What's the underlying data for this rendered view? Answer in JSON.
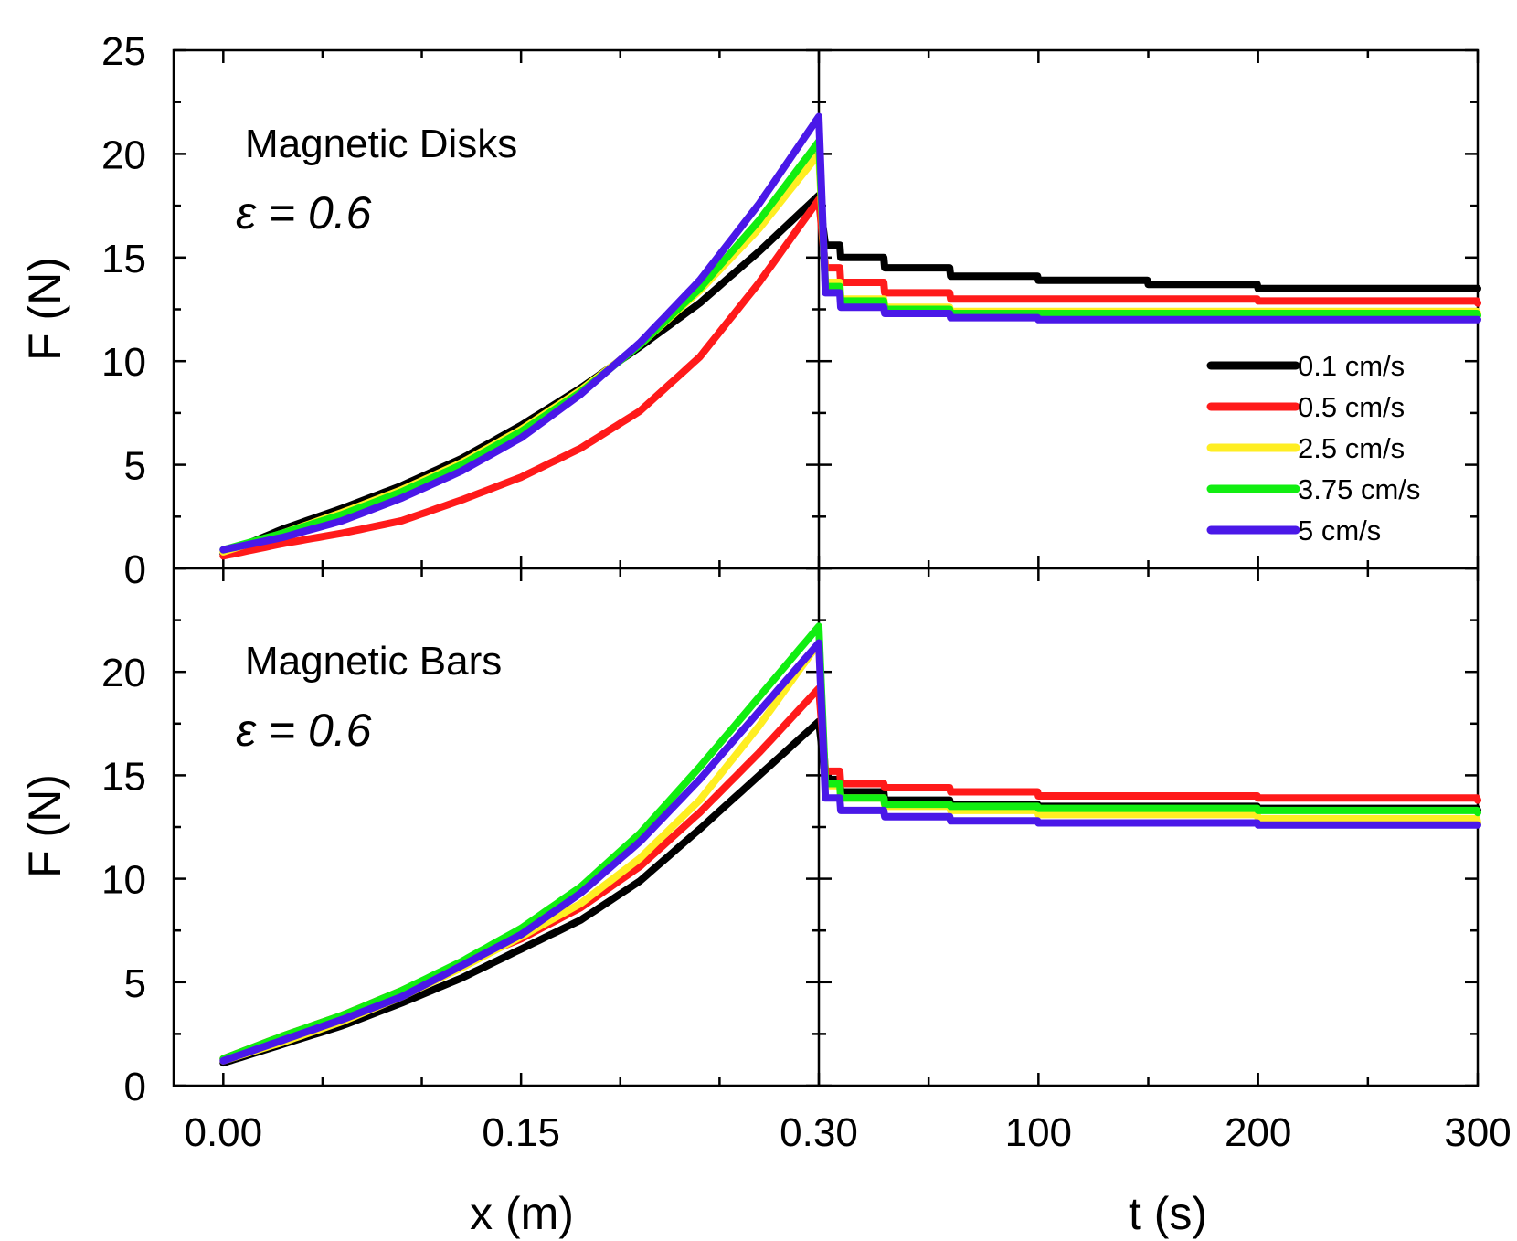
{
  "colors": {
    "0.1 cm/s": "#000000",
    "0.5 cm/s": "#ff1a1a",
    "2.5 cm/s": "#ffee22",
    "3.75 cm/s": "#11ee11",
    "5 cm/s": "#4a18e8"
  },
  "chart_data": {
    "type": "line",
    "title": "",
    "ylabel": "F (N)",
    "ylim": [
      0,
      25
    ],
    "yticks": [
      "0",
      "5",
      "10",
      "15",
      "20",
      "25"
    ],
    "yticks_bottom": [
      "0",
      "5",
      "10",
      "15",
      "20"
    ],
    "xlabel_left": "x (m)",
    "xlabel_right": "t (s)",
    "xlim_left": [
      -0.025,
      0.3
    ],
    "xlim_right": [
      0,
      300
    ],
    "xticks_left": [
      "0.00",
      "0.15",
      "0.30"
    ],
    "xticks_right": [
      "100",
      "200",
      "300"
    ],
    "legend": {
      "position": "right-middle of top-right panel",
      "entries": [
        "0.1 cm/s",
        "0.5 cm/s",
        "2.5 cm/s",
        "3.75 cm/s",
        "5 cm/s"
      ]
    },
    "panels": [
      {
        "name": "top",
        "annotation": "Magnetic Disks",
        "epsilon_label": "ε = 0.6",
        "loading_x": [
          0.0,
          0.03,
          0.06,
          0.09,
          0.12,
          0.15,
          0.18,
          0.21,
          0.24,
          0.27,
          0.3
        ],
        "series": [
          {
            "name": "0.1 cm/s",
            "loading": [
              0.7,
              1.9,
              2.9,
              4.0,
              5.3,
              6.9,
              8.7,
              10.7,
              12.8,
              15.3,
              18.0
            ],
            "relaxation": [
              [
                0,
                18.0
              ],
              [
                3,
                15.6
              ],
              [
                10,
                15.0
              ],
              [
                30,
                14.5
              ],
              [
                60,
                14.1
              ],
              [
                100,
                13.9
              ],
              [
                150,
                13.7
              ],
              [
                200,
                13.5
              ],
              [
                300,
                13.5
              ]
            ]
          },
          {
            "name": "0.5 cm/s",
            "loading": [
              0.6,
              1.2,
              1.7,
              2.3,
              3.3,
              4.4,
              5.8,
              7.6,
              10.2,
              13.8,
              17.8
            ],
            "relaxation": [
              [
                0,
                17.8
              ],
              [
                3,
                14.5
              ],
              [
                10,
                13.8
              ],
              [
                30,
                13.3
              ],
              [
                60,
                13.0
              ],
              [
                100,
                13.0
              ],
              [
                200,
                12.9
              ],
              [
                300,
                12.8
              ]
            ]
          },
          {
            "name": "2.5 cm/s",
            "loading": [
              0.8,
              1.7,
              2.7,
              3.8,
              5.1,
              6.7,
              8.6,
              10.8,
              13.4,
              16.4,
              20.0
            ],
            "relaxation": [
              [
                0,
                20.0
              ],
              [
                3,
                13.8
              ],
              [
                10,
                13.0
              ],
              [
                30,
                12.6
              ],
              [
                60,
                12.4
              ],
              [
                100,
                12.4
              ],
              [
                300,
                12.3
              ]
            ]
          },
          {
            "name": "3.75 cm/s",
            "loading": [
              0.9,
              1.7,
              2.6,
              3.7,
              5.0,
              6.6,
              8.5,
              10.8,
              13.5,
              16.8,
              20.6
            ],
            "relaxation": [
              [
                0,
                20.6
              ],
              [
                3,
                13.6
              ],
              [
                10,
                12.9
              ],
              [
                30,
                12.5
              ],
              [
                60,
                12.3
              ],
              [
                100,
                12.3
              ],
              [
                300,
                12.2
              ]
            ]
          },
          {
            "name": "5 cm/s",
            "loading": [
              0.9,
              1.5,
              2.3,
              3.4,
              4.7,
              6.3,
              8.4,
              10.9,
              13.9,
              17.6,
              21.8
            ],
            "relaxation": [
              [
                0,
                21.8
              ],
              [
                3,
                13.3
              ],
              [
                10,
                12.6
              ],
              [
                30,
                12.3
              ],
              [
                60,
                12.1
              ],
              [
                100,
                12.0
              ],
              [
                300,
                12.0
              ]
            ]
          }
        ]
      },
      {
        "name": "bottom",
        "annotation": "Magnetic Bars",
        "epsilon_label": "ε = 0.6",
        "loading_x": [
          0.0,
          0.03,
          0.06,
          0.09,
          0.12,
          0.15,
          0.18,
          0.21,
          0.24,
          0.27,
          0.3
        ],
        "series": [
          {
            "name": "0.1 cm/s",
            "loading": [
              1.1,
              2.0,
              2.9,
              4.0,
              5.2,
              6.6,
              8.0,
              9.9,
              12.4,
              15.0,
              17.6
            ],
            "relaxation": [
              [
                0,
                17.6
              ],
              [
                3,
                14.8
              ],
              [
                10,
                14.2
              ],
              [
                30,
                13.8
              ],
              [
                60,
                13.6
              ],
              [
                100,
                13.5
              ],
              [
                200,
                13.4
              ],
              [
                300,
                13.3
              ]
            ]
          },
          {
            "name": "0.5 cm/s",
            "loading": [
              1.3,
              2.4,
              3.4,
              4.6,
              5.9,
              7.1,
              8.6,
              10.6,
              13.2,
              16.1,
              19.2
            ],
            "relaxation": [
              [
                0,
                19.2
              ],
              [
                3,
                15.2
              ],
              [
                10,
                14.6
              ],
              [
                30,
                14.4
              ],
              [
                60,
                14.2
              ],
              [
                100,
                14.0
              ],
              [
                200,
                13.9
              ],
              [
                300,
                13.8
              ]
            ]
          },
          {
            "name": "2.5 cm/s",
            "loading": [
              1.2,
              2.1,
              3.1,
              4.3,
              5.7,
              7.2,
              8.8,
              11.0,
              13.8,
              17.4,
              21.4
            ],
            "relaxation": [
              [
                0,
                21.4
              ],
              [
                3,
                14.5
              ],
              [
                10,
                13.9
              ],
              [
                30,
                13.5
              ],
              [
                60,
                13.3
              ],
              [
                100,
                13.1
              ],
              [
                200,
                12.9
              ],
              [
                300,
                12.7
              ]
            ]
          },
          {
            "name": "3.75 cm/s",
            "loading": [
              1.3,
              2.4,
              3.4,
              4.6,
              6.0,
              7.6,
              9.6,
              12.2,
              15.4,
              18.8,
              22.2
            ],
            "relaxation": [
              [
                0,
                22.2
              ],
              [
                3,
                14.6
              ],
              [
                10,
                13.9
              ],
              [
                30,
                13.6
              ],
              [
                60,
                13.5
              ],
              [
                100,
                13.4
              ],
              [
                200,
                13.3
              ],
              [
                300,
                13.2
              ]
            ]
          },
          {
            "name": "5 cm/s",
            "loading": [
              1.2,
              2.2,
              3.2,
              4.3,
              5.8,
              7.3,
              9.3,
              11.8,
              14.8,
              18.1,
              21.4
            ],
            "relaxation": [
              [
                0,
                21.4
              ],
              [
                3,
                13.9
              ],
              [
                10,
                13.3
              ],
              [
                30,
                13.0
              ],
              [
                60,
                12.8
              ],
              [
                100,
                12.7
              ],
              [
                200,
                12.6
              ],
              [
                300,
                12.6
              ]
            ]
          }
        ]
      }
    ]
  }
}
